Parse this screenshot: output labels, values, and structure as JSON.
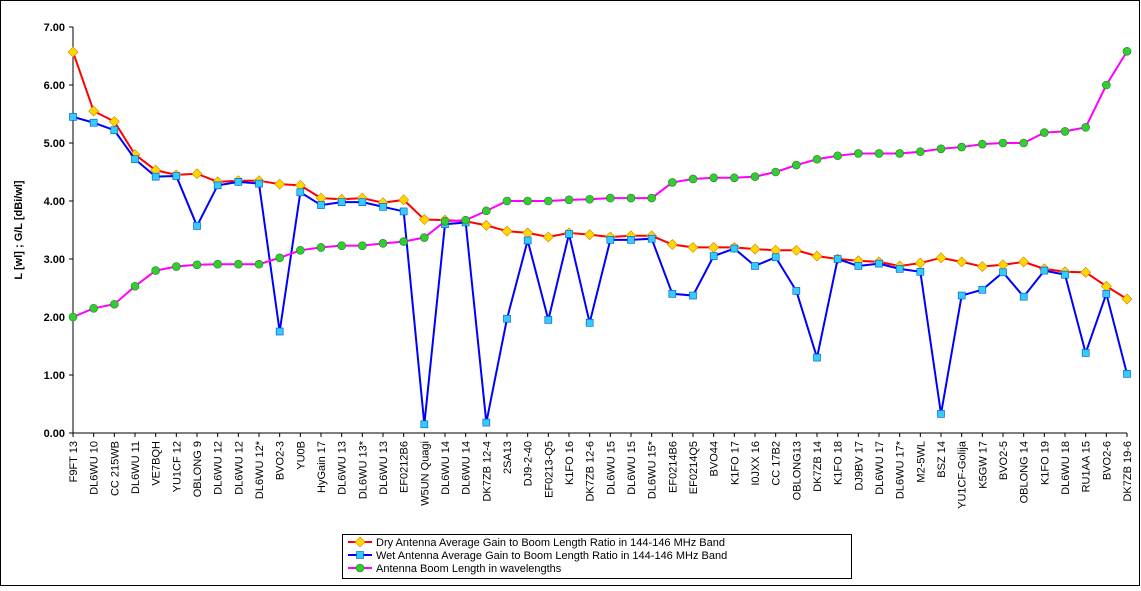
{
  "chart_data": {
    "type": "line",
    "y_label": "L [wl] ; G/L [dBi/wl]",
    "categories": [
      "F9FT 13",
      "DL6WU 10",
      "CC 215WB",
      "DL6WU 11",
      "VE7BQH",
      "YU1CF 12",
      "OBLONG 9",
      "DL6WU 12",
      "DL6WU 12",
      "DL6WU 12*",
      "BVO2-3",
      "YU0B",
      "HyGain 17",
      "DL6WU 13",
      "DL6WU 13*",
      "DL6WU 13",
      "EF0212B6",
      "W5UN Quagi",
      "DL6WU 14",
      "DL6WU 14",
      "DK7ZB 12-4",
      "2SA13",
      "DJ9-2-40",
      "EF0213-Q5",
      "K1FO 16",
      "DK7ZB 12-6",
      "DL6WU 15",
      "DL6WU 15",
      "DL6WU 15*",
      "EF0214B6",
      "EF0214Q5",
      "BVO44",
      "K1FO 17",
      "I0JXX 16",
      "CC 17B2",
      "OBLONG13",
      "DK7ZB 14",
      "K1FO 18",
      "DJ9BV 17",
      "DL6WU 17",
      "DL6WU 17*",
      "M2-5WL",
      "BSZ 14",
      "YU1CF-Golija",
      "K5GW 17",
      "BVO2-5",
      "OBLONG 14",
      "K1FO 19",
      "DL6WU 18",
      "RU1AA 15",
      "BVO2-6",
      "DK7ZB 19-6"
    ],
    "series": [
      {
        "name": "Dry Antenna Average Gain to Boom Length Ratio in 144-146 MHz Band",
        "color": "#ff0000",
        "marker": "diamond",
        "marker_color": "#ffd700",
        "values": [
          6.57,
          5.55,
          5.37,
          4.8,
          4.53,
          4.45,
          4.47,
          4.33,
          4.35,
          4.35,
          4.29,
          4.27,
          4.05,
          4.03,
          4.05,
          3.97,
          4.02,
          3.68,
          3.67,
          3.65,
          3.58,
          3.48,
          3.45,
          3.38,
          3.45,
          3.42,
          3.38,
          3.4,
          3.4,
          3.25,
          3.2,
          3.2,
          3.2,
          3.17,
          3.15,
          3.15,
          3.05,
          3.0,
          2.97,
          2.95,
          2.88,
          2.93,
          3.02,
          2.95,
          2.87,
          2.9,
          2.95,
          2.83,
          2.78,
          2.77,
          2.53,
          2.31
        ]
      },
      {
        "name": "Wet Antenna Average Gain to Boom Length Ratio in 144-146 MHz Band",
        "color": "#0000ff",
        "marker": "square",
        "marker_color": "#33ccff",
        "values": [
          5.45,
          5.35,
          5.22,
          4.72,
          4.42,
          4.43,
          3.57,
          4.27,
          4.33,
          4.3,
          1.75,
          4.15,
          3.93,
          3.98,
          3.98,
          3.9,
          3.82,
          0.15,
          3.6,
          3.63,
          0.18,
          1.97,
          3.32,
          1.95,
          3.43,
          1.9,
          3.33,
          3.33,
          3.35,
          2.4,
          2.37,
          3.05,
          3.18,
          2.88,
          3.03,
          2.45,
          1.3,
          3.0,
          2.88,
          2.92,
          2.83,
          2.78,
          0.33,
          2.37,
          2.47,
          2.77,
          2.35,
          2.8,
          2.73,
          1.38,
          2.4,
          1.02
        ]
      },
      {
        "name": "Antenna Boom Length in wavelengths",
        "color": "#ff00ff",
        "marker": "circle",
        "marker_color": "#33cc33",
        "values": [
          2.0,
          2.15,
          2.22,
          2.53,
          2.8,
          2.87,
          2.9,
          2.91,
          2.91,
          2.91,
          3.02,
          3.15,
          3.2,
          3.23,
          3.23,
          3.27,
          3.3,
          3.37,
          3.65,
          3.67,
          3.83,
          4.0,
          4.0,
          4.0,
          4.02,
          4.03,
          4.05,
          4.05,
          4.05,
          4.32,
          4.38,
          4.4,
          4.4,
          4.42,
          4.5,
          4.62,
          4.72,
          4.78,
          4.82,
          4.82,
          4.82,
          4.85,
          4.9,
          4.93,
          4.98,
          5.0,
          5.0,
          5.18,
          5.2,
          5.27,
          6.0,
          6.58
        ]
      }
    ],
    "ylim": [
      0,
      7
    ],
    "yticks": [
      {
        "value": 0,
        "label": "0.00"
      },
      {
        "value": 1,
        "label": "1.00"
      },
      {
        "value": 2,
        "label": "2.00"
      },
      {
        "value": 3,
        "label": "3.00"
      },
      {
        "value": 4,
        "label": "4.00"
      },
      {
        "value": 5,
        "label": "5.00"
      },
      {
        "value": 6,
        "label": "6.00"
      },
      {
        "value": 7,
        "label": "7.00"
      }
    ],
    "grid": false,
    "legend": "bottom"
  }
}
